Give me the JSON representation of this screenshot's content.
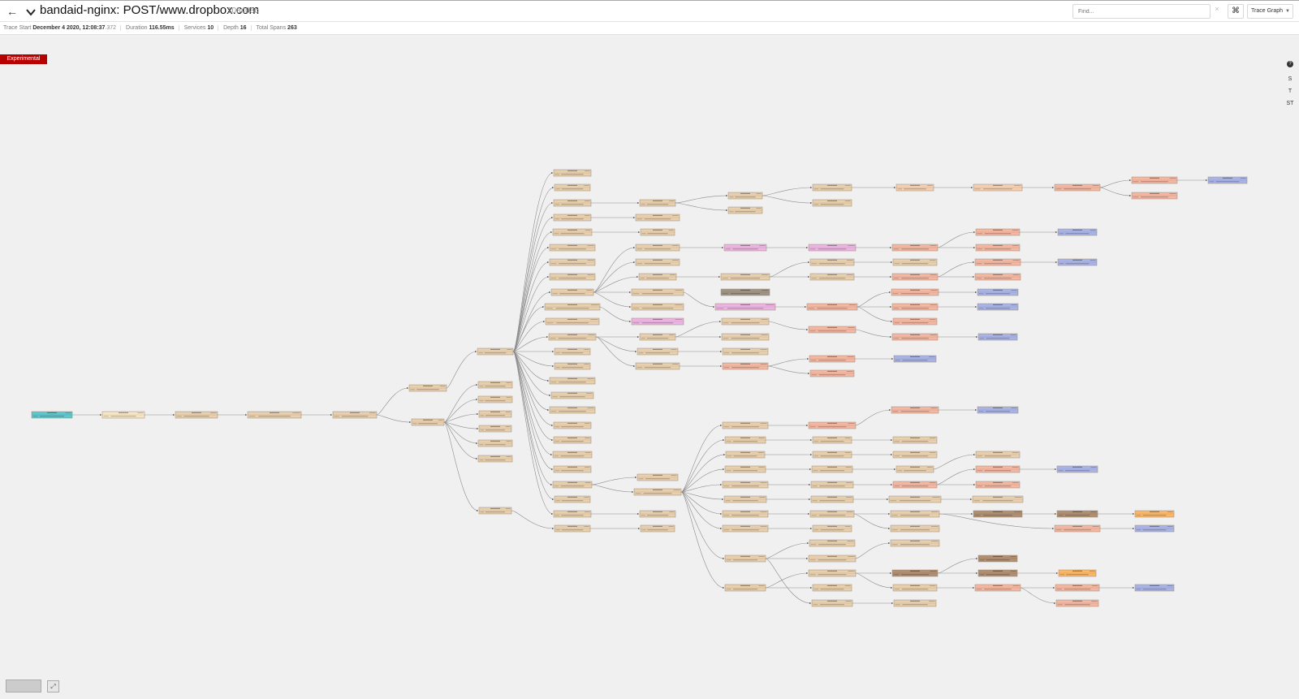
{
  "header": {
    "back_icon": "arrow-left-icon",
    "collapse_icon": "chevron-down-icon",
    "title": "bandaid-nginx: POST/www.dropbox.com",
    "trace_id": "108408c",
    "find_placeholder": "Find...",
    "find_clear": "×",
    "shortcut_label": "⌘",
    "view_selected": "Trace Graph"
  },
  "summary": {
    "trace_start_label": "Trace Start",
    "trace_start_value": "December 4 2020, 12:08:37",
    "trace_start_ms": ".372",
    "duration_label": "Duration",
    "duration_value": "116.55ms",
    "services_label": "Services",
    "services_value": "10",
    "depth_label": "Depth",
    "depth_value": "16",
    "total_spans_label": "Total Spans",
    "total_spans_value": "263"
  },
  "badge": "Experimental",
  "rail": {
    "help_label": "?",
    "s_label": "S",
    "t_label": "T",
    "st_label": "ST"
  },
  "fit_icon": "⤢",
  "colors": {
    "tan": "#e8d0ae",
    "tan_border": "#b59c7e",
    "teal": "#5ec8cf",
    "cream": "#f7e6c4",
    "salmon": "#f3b7a2",
    "blue": "#a9b4e6",
    "pink": "#ecb4e3",
    "gray": "#9e9486",
    "brown": "#b08f72",
    "orange": "#fbb767",
    "peach": "#f5cfb0"
  }
}
